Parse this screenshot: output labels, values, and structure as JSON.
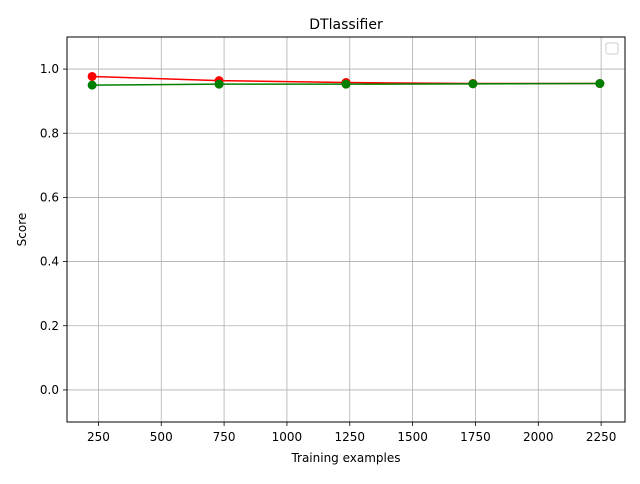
{
  "chart_data": {
    "type": "line",
    "title": "DTlassifier",
    "xlabel": "Training examples",
    "ylabel": "Score",
    "xlim": [
      125,
      2345
    ],
    "ylim": [
      -0.1,
      1.1
    ],
    "xticks": [
      250,
      500,
      750,
      1000,
      1250,
      1500,
      1750,
      2000,
      2250
    ],
    "xtick_labels": [
      "250",
      "500",
      "750",
      "1000",
      "1250",
      "1500",
      "1750",
      "2000",
      "2250"
    ],
    "yticks": [
      0.0,
      0.2,
      0.4,
      0.6,
      0.8,
      1.0
    ],
    "ytick_labels": [
      "0.0",
      "0.2",
      "0.4",
      "0.6",
      "0.8",
      "1.0"
    ],
    "grid": true,
    "legend": {
      "placement": "upper-right",
      "entries": []
    },
    "x": [
      225,
      730,
      1235,
      1740,
      2245
    ],
    "series": [
      {
        "color": "#ff0000",
        "values": [
          0.977,
          0.964,
          0.958,
          0.955,
          0.955
        ]
      },
      {
        "color": "#008000",
        "values": [
          0.95,
          0.953,
          0.953,
          0.954,
          0.955
        ]
      }
    ]
  }
}
